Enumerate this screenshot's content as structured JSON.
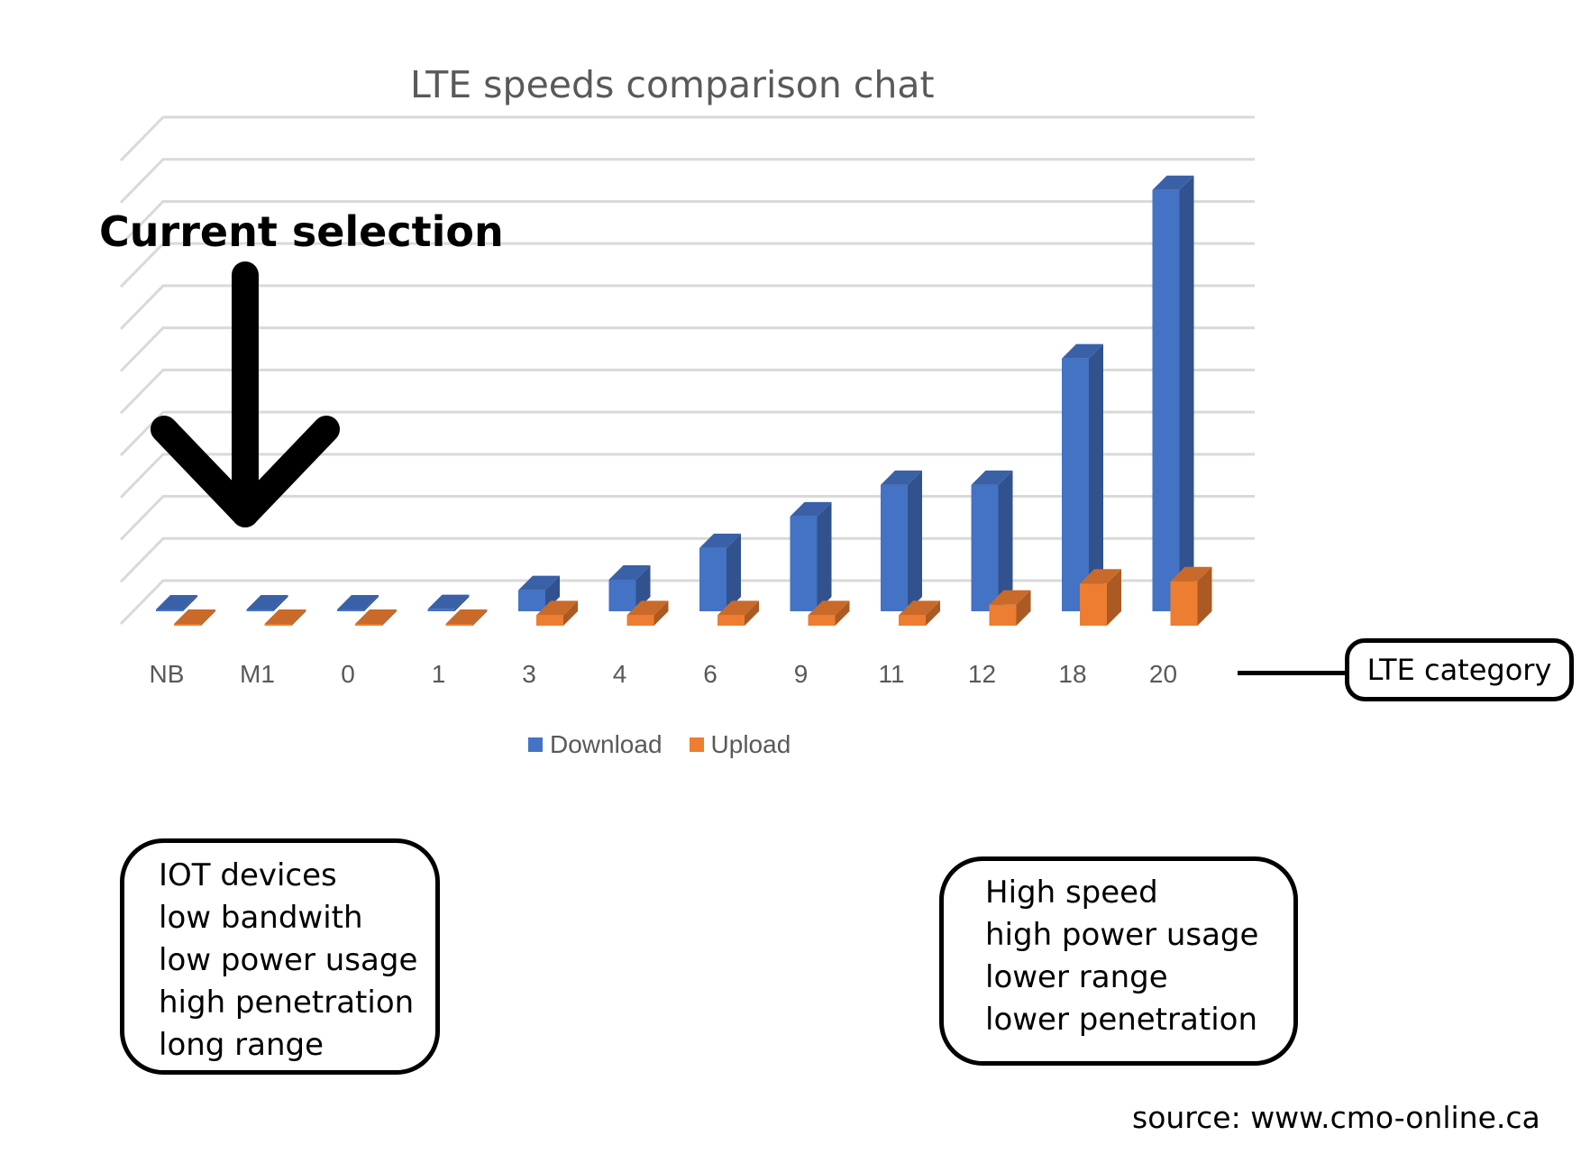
{
  "chart_data": {
    "type": "bar",
    "title": "LTE speeds comparison chat",
    "categories": [
      "NB",
      "M1",
      "0",
      "1",
      "3",
      "4",
      "6",
      "9",
      "11",
      "12",
      "18",
      "20"
    ],
    "series": [
      {
        "name": "Download",
        "values": [
          0.3,
          1,
          1,
          10,
          100,
          150,
          300,
          450,
          600,
          600,
          1200,
          2000
        ]
      },
      {
        "name": "Upload",
        "values": [
          0.1,
          1,
          1,
          5,
          50,
          50,
          50,
          50,
          50,
          100,
          200,
          211
        ]
      }
    ],
    "ylim": [
      0,
      2200
    ],
    "grid": true,
    "legend_position": "bottom",
    "colors": {
      "Download": "#4472c4",
      "Upload": "#ed7d31"
    }
  },
  "annotations": {
    "current_selection": "Current selection",
    "lte_category": "LTE category",
    "left_box": [
      "IOT devices",
      "low bandwith",
      "low power usage",
      "high penetration",
      "long range"
    ],
    "right_box": [
      "High speed",
      "high power usage",
      "lower range",
      "lower penetration"
    ],
    "source": "source: www.cmo-online.ca"
  }
}
